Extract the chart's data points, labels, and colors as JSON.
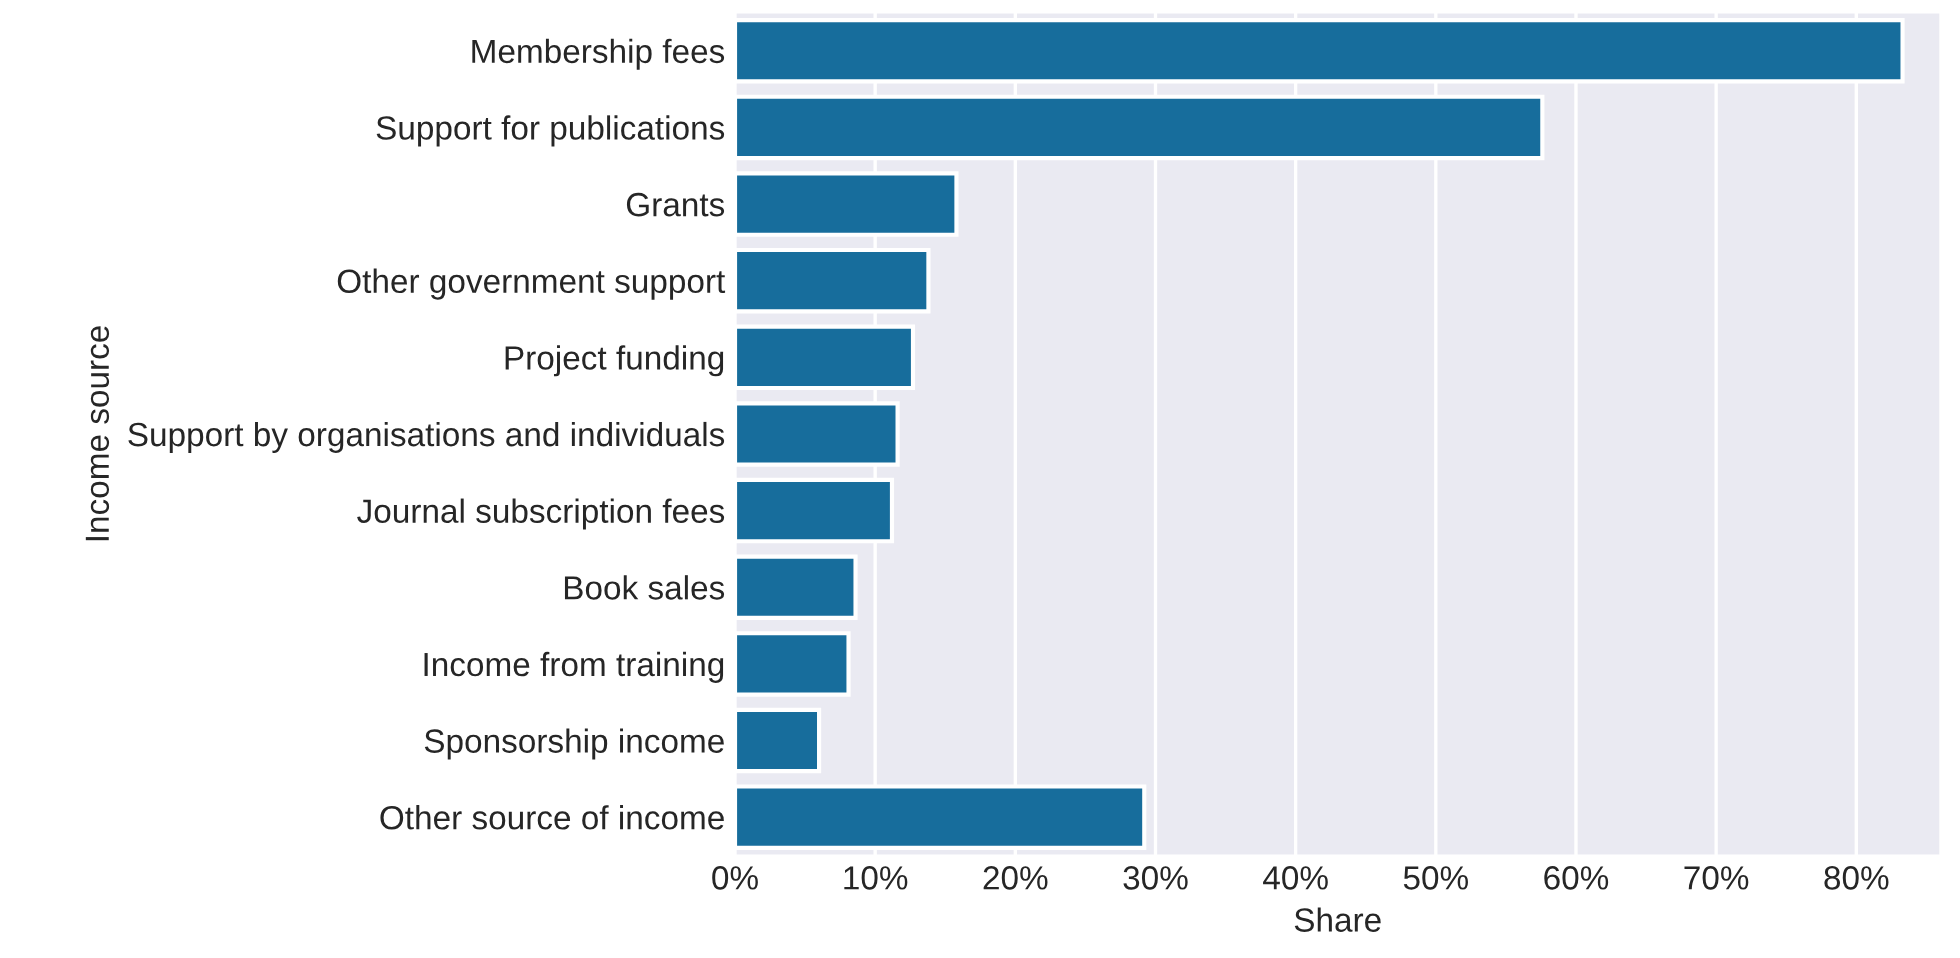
{
  "chart_data": {
    "type": "bar",
    "orientation": "horizontal",
    "xlabel": "Share",
    "ylabel": "Income source",
    "categories": [
      "Membership fees",
      "Support for publications",
      "Grants",
      "Other government support",
      "Project funding",
      "Support by organisations and individuals",
      "Journal subscription fees",
      "Book sales",
      "Income from training",
      "Sponsorship income",
      "Other source of income"
    ],
    "values": [
      83.3,
      57.6,
      15.8,
      13.8,
      12.7,
      11.6,
      11.2,
      8.6,
      8.1,
      6.0,
      29.2
    ],
    "color": "#176d9c",
    "xlim": [
      0,
      86
    ],
    "xticks": [
      {
        "value": 0,
        "label": "0%"
      },
      {
        "value": 10,
        "label": "10%"
      },
      {
        "value": 20,
        "label": "20%"
      },
      {
        "value": 30,
        "label": "30%"
      },
      {
        "value": 40,
        "label": "40%"
      },
      {
        "value": 50,
        "label": "50%"
      },
      {
        "value": 60,
        "label": "60%"
      },
      {
        "value": 70,
        "label": "70%"
      },
      {
        "value": 80,
        "label": "80%"
      }
    ],
    "grid": "x"
  }
}
